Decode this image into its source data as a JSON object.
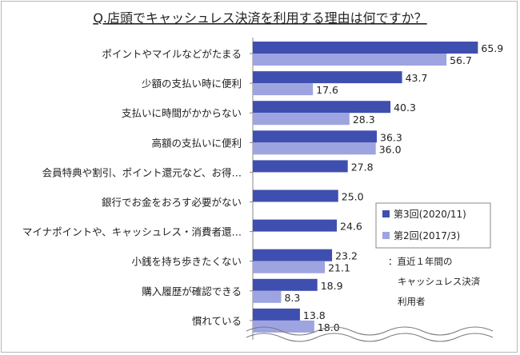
{
  "chart_data": {
    "type": "bar",
    "orientation": "horizontal",
    "title": "Q.店頭でキャッシュレス決済を利用する理由は何ですか？",
    "categories": [
      "ポイントやマイルなどがたまる",
      "少額の支払い時に便利",
      "支払いに時間がかからない",
      "高額の支払いに便利",
      "会員特典や割引、ポイント還元など、お得…",
      "銀行でお金をおろす必要がない",
      "マイナポイントや、キャッシュレス・消費者還…",
      "小銭を持ち歩きたくない",
      "購入履歴が確認できる",
      "慣れている"
    ],
    "series": [
      {
        "name": "第3回(2020/11)",
        "color": "#3f4fb0",
        "values": [
          65.9,
          43.7,
          40.3,
          36.3,
          27.8,
          25.0,
          24.6,
          23.2,
          18.9,
          13.8
        ]
      },
      {
        "name": "第2回(2017/3)",
        "color": "#9ea4e0",
        "values": [
          56.7,
          17.6,
          28.3,
          36.0,
          null,
          null,
          null,
          21.1,
          8.3,
          18.0
        ]
      }
    ],
    "xlim": [
      0,
      70
    ],
    "legend_position": "right",
    "note": "：直近１年間の\nキャッシュレス決済\n利用者",
    "grid": false
  }
}
